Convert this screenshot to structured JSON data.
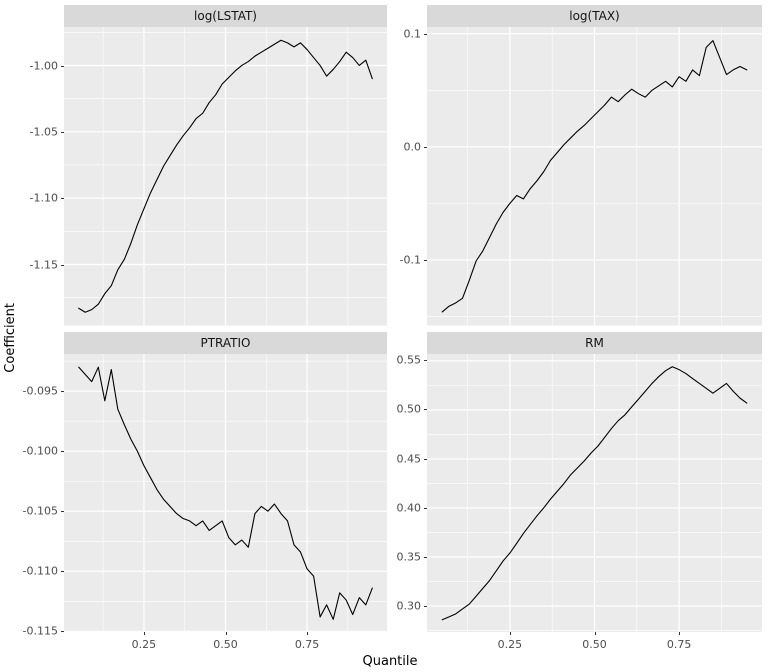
{
  "figure": {
    "xlabel": "Quantile",
    "ylabel": "Coefficient",
    "colors": {
      "panel_bg": "#EBEBEB",
      "strip_bg": "#D9D9D9",
      "grid": "#FFFFFF",
      "line": "#000000",
      "tick_text": "#4D4D4D",
      "axis_tick": "#333333"
    }
  },
  "chart_data": {
    "type": "line",
    "title": "",
    "xlabel": "Quantile",
    "ylabel": "Coefficient",
    "legend": "none",
    "grid": "on",
    "x_domain": [
      0.005,
      0.995
    ],
    "x_ticks": [
      0.25,
      0.5,
      0.75
    ],
    "x_tick_labels": [
      "0.25",
      "0.50",
      "0.75"
    ],
    "x_minor_ticks": [
      0.125,
      0.375,
      0.625,
      0.875
    ],
    "x": [
      0.05,
      0.07,
      0.09,
      0.11,
      0.13,
      0.15,
      0.17,
      0.19,
      0.21,
      0.23,
      0.25,
      0.27,
      0.29,
      0.31,
      0.33,
      0.35,
      0.37,
      0.39,
      0.41,
      0.43,
      0.45,
      0.47,
      0.49,
      0.51,
      0.53,
      0.55,
      0.57,
      0.59,
      0.61,
      0.63,
      0.65,
      0.67,
      0.69,
      0.71,
      0.73,
      0.75,
      0.77,
      0.79,
      0.81,
      0.83,
      0.85,
      0.87,
      0.89,
      0.91,
      0.93,
      0.95
    ],
    "facets": [
      {
        "label": "log(LSTAT)",
        "ylim": [
          -1.196,
          -0.971
        ],
        "y_ticks": [
          -1.15,
          -1.1,
          -1.05,
          -1.0
        ],
        "y_tick_labels": [
          "-1.15",
          "-1.10",
          "-1.05",
          "-1.00"
        ],
        "values": [
          -1.183,
          -1.186,
          -1.184,
          -1.18,
          -1.172,
          -1.166,
          -1.154,
          -1.146,
          -1.134,
          -1.12,
          -1.108,
          -1.096,
          -1.086,
          -1.076,
          -1.068,
          -1.06,
          -1.053,
          -1.047,
          -1.04,
          -1.036,
          -1.028,
          -1.022,
          -1.014,
          -1.009,
          -1.004,
          -1.0,
          -0.997,
          -0.993,
          -0.99,
          -0.987,
          -0.984,
          -0.981,
          -0.983,
          -0.986,
          -0.983,
          -0.988,
          -0.994,
          -1.0,
          -1.008,
          -1.003,
          -0.997,
          -0.99,
          -0.994,
          -1.0,
          -0.996,
          -1.01
        ]
      },
      {
        "label": "log(TAX)",
        "ylim": [
          -0.158,
          0.106
        ],
        "y_ticks": [
          -0.1,
          0.0,
          0.1
        ],
        "y_tick_labels": [
          "-0.1",
          "0.0",
          "0.1"
        ],
        "values": [
          -0.146,
          -0.141,
          -0.138,
          -0.134,
          -0.118,
          -0.101,
          -0.092,
          -0.08,
          -0.068,
          -0.058,
          -0.05,
          -0.043,
          -0.046,
          -0.037,
          -0.03,
          -0.022,
          -0.012,
          -0.005,
          0.002,
          0.008,
          0.014,
          0.019,
          0.025,
          0.031,
          0.037,
          0.044,
          0.04,
          0.046,
          0.051,
          0.047,
          0.044,
          0.05,
          0.054,
          0.058,
          0.053,
          0.062,
          0.058,
          0.068,
          0.063,
          0.088,
          0.094,
          0.079,
          0.064,
          0.068,
          0.071,
          0.068
        ]
      },
      {
        "label": "PTRATIO",
        "ylim": [
          -0.1151,
          -0.0919
        ],
        "y_ticks": [
          -0.115,
          -0.11,
          -0.105,
          -0.1,
          -0.095
        ],
        "y_tick_labels": [
          "-0.115",
          "-0.110",
          "-0.105",
          "-0.100",
          "-0.095"
        ],
        "values": [
          -0.093,
          -0.0936,
          -0.0942,
          -0.093,
          -0.0958,
          -0.0932,
          -0.0965,
          -0.0978,
          -0.099,
          -0.1,
          -0.1012,
          -0.1022,
          -0.1032,
          -0.104,
          -0.1046,
          -0.1052,
          -0.1056,
          -0.1058,
          -0.1062,
          -0.1058,
          -0.1066,
          -0.1062,
          -0.1058,
          -0.1072,
          -0.1078,
          -0.1074,
          -0.108,
          -0.1052,
          -0.1046,
          -0.105,
          -0.1044,
          -0.1052,
          -0.1058,
          -0.1078,
          -0.1084,
          -0.1098,
          -0.1104,
          -0.1138,
          -0.1128,
          -0.114,
          -0.1118,
          -0.1124,
          -0.1136,
          -0.1122,
          -0.1128,
          -0.1114
        ]
      },
      {
        "label": "RM",
        "ylim": [
          0.273,
          0.557
        ],
        "y_ticks": [
          0.3,
          0.35,
          0.4,
          0.45,
          0.5,
          0.55
        ],
        "y_tick_labels": [
          "0.30",
          "0.35",
          "0.40",
          "0.45",
          "0.50",
          "0.55"
        ],
        "values": [
          0.286,
          0.289,
          0.292,
          0.297,
          0.302,
          0.31,
          0.318,
          0.326,
          0.336,
          0.346,
          0.354,
          0.364,
          0.374,
          0.383,
          0.392,
          0.4,
          0.409,
          0.417,
          0.425,
          0.434,
          0.441,
          0.448,
          0.456,
          0.463,
          0.472,
          0.481,
          0.489,
          0.495,
          0.503,
          0.511,
          0.519,
          0.527,
          0.534,
          0.54,
          0.544,
          0.541,
          0.537,
          0.532,
          0.527,
          0.522,
          0.517,
          0.522,
          0.527,
          0.519,
          0.512,
          0.507
        ]
      }
    ]
  }
}
